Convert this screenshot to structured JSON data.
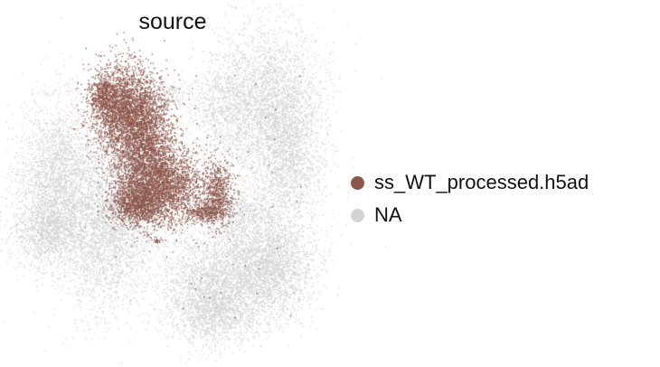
{
  "chart_data": {
    "type": "scatter",
    "title": "source",
    "xlabel": "",
    "ylabel": "",
    "grid": false,
    "axes_visible": false,
    "legend_placement": "right",
    "series": [
      {
        "name": "ss_WT_processed.h5ad",
        "color": "#8c564b"
      },
      {
        "name": "NA",
        "color": "#d3d3d3"
      }
    ]
  }
}
